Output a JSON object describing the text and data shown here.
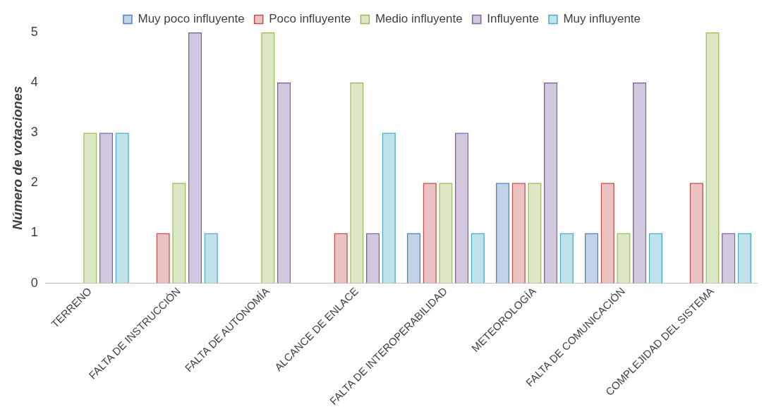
{
  "chart_data": {
    "type": "bar",
    "ylabel": "Número de votaciones",
    "categories": [
      "TERRENO",
      "FALTA DE INSTRUCCIÓN",
      "FALTA DE AUTONOMÍA",
      "ALCANCE DE ENLACE",
      "FALTA DE INTEROPERABILIDAD",
      "METEOROLOGÍA",
      "FALTA DE COMUNICACIÓN",
      "COMPLEJIDAD DEL SISTEMA"
    ],
    "series": [
      {
        "name": "Muy poco influyente",
        "color": "#4f81bd",
        "values": [
          0,
          0,
          0,
          0,
          1,
          2,
          1,
          0
        ]
      },
      {
        "name": "Poco influyente",
        "color": "#c0504d",
        "values": [
          0,
          1,
          0,
          1,
          2,
          2,
          2,
          2
        ]
      },
      {
        "name": "Medio influyente",
        "color": "#9bbb59",
        "values": [
          3,
          2,
          5,
          4,
          2,
          2,
          1,
          5
        ]
      },
      {
        "name": "Influyente",
        "color": "#8064a2",
        "values": [
          3,
          5,
          4,
          1,
          3,
          4,
          4,
          1
        ]
      },
      {
        "name": "Muy influyente",
        "color": "#4bacc6",
        "values": [
          3,
          1,
          0,
          3,
          1,
          1,
          1,
          1
        ]
      }
    ],
    "ylim": [
      0,
      5
    ],
    "yticks": [
      0,
      1,
      2,
      3,
      4,
      5
    ],
    "grid": false,
    "legend": "top"
  }
}
